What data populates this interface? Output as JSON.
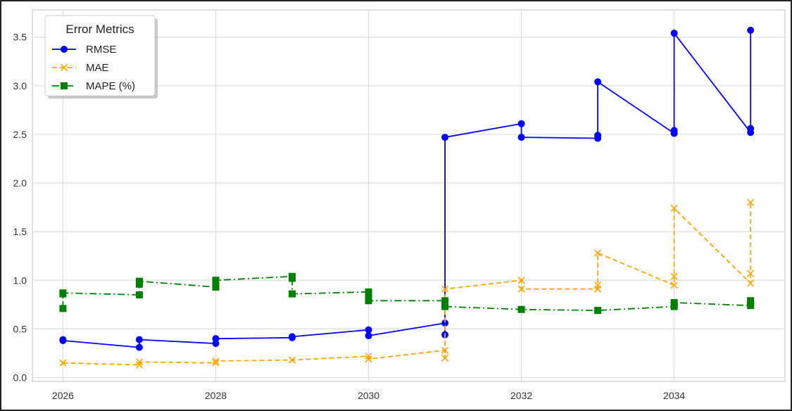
{
  "chart_data": {
    "type": "line",
    "title": "",
    "xlabel": "",
    "ylabel": "",
    "xlim": [
      2025.6,
      2035.45
    ],
    "ylim": [
      -0.04,
      3.78
    ],
    "xticks": [
      "2026",
      "2028",
      "2030",
      "2032",
      "2034"
    ],
    "yticks": [
      "0.0",
      "0.5",
      "1.0",
      "1.5",
      "2.0",
      "2.5",
      "3.0",
      "3.5"
    ],
    "grid": true,
    "legend": {
      "title": "Error Metrics",
      "placement": "top-left",
      "entries": [
        "RMSE",
        "MAE",
        "MAPE (%)"
      ]
    },
    "series": [
      {
        "name": "RMSE",
        "color": "#0000ff",
        "linestyle": "solid",
        "marker": "circle",
        "points": [
          [
            2026,
            0.39
          ],
          [
            2026,
            0.38
          ],
          [
            2027,
            0.31
          ],
          [
            2027,
            0.39
          ],
          [
            2028,
            0.35
          ],
          [
            2028,
            0.4
          ],
          [
            2029,
            0.41
          ],
          [
            2029,
            0.42
          ],
          [
            2030,
            0.49
          ],
          [
            2030,
            0.43
          ],
          [
            2031,
            0.56
          ],
          [
            2031,
            0.44
          ],
          [
            2031,
            2.47
          ],
          [
            2032,
            2.61
          ],
          [
            2032,
            2.47
          ],
          [
            2033,
            2.46
          ],
          [
            2033,
            2.49
          ],
          [
            2033,
            3.04
          ],
          [
            2034,
            2.51
          ],
          [
            2034,
            2.54
          ],
          [
            2034,
            3.54
          ],
          [
            2035,
            2.52
          ],
          [
            2035,
            2.56
          ],
          [
            2035,
            3.57
          ]
        ]
      },
      {
        "name": "MAE",
        "color": "#ffa500",
        "linestyle": "dashed",
        "marker": "x",
        "points": [
          [
            2026,
            0.15
          ],
          [
            2026,
            0.15
          ],
          [
            2027,
            0.13
          ],
          [
            2027,
            0.16
          ],
          [
            2028,
            0.15
          ],
          [
            2028,
            0.17
          ],
          [
            2029,
            0.18
          ],
          [
            2029,
            0.18
          ],
          [
            2030,
            0.22
          ],
          [
            2030,
            0.19
          ],
          [
            2031,
            0.28
          ],
          [
            2031,
            0.2
          ],
          [
            2031,
            0.91
          ],
          [
            2032,
            1.0
          ],
          [
            2032,
            0.91
          ],
          [
            2033,
            0.91
          ],
          [
            2033,
            0.95
          ],
          [
            2033,
            1.28
          ],
          [
            2034,
            0.95
          ],
          [
            2034,
            1.04
          ],
          [
            2034,
            1.74
          ],
          [
            2035,
            0.97
          ],
          [
            2035,
            1.07
          ],
          [
            2035,
            1.8
          ]
        ]
      },
      {
        "name": "MAPE (%)",
        "color": "#008000",
        "linestyle": "dashdot",
        "marker": "square",
        "points": [
          [
            2026,
            0.71
          ],
          [
            2026,
            0.86
          ],
          [
            2026,
            0.87
          ],
          [
            2027,
            0.85
          ],
          [
            2027,
            0.96
          ],
          [
            2027,
            0.99
          ],
          [
            2028,
            0.93
          ],
          [
            2028,
            0.98
          ],
          [
            2028,
            1.0
          ],
          [
            2029,
            1.04
          ],
          [
            2029,
            1.02
          ],
          [
            2029,
            0.86
          ],
          [
            2030,
            0.88
          ],
          [
            2030,
            0.81
          ],
          [
            2030,
            0.79
          ],
          [
            2031,
            0.79
          ],
          [
            2031,
            0.75
          ],
          [
            2031,
            0.73
          ],
          [
            2032,
            0.7
          ],
          [
            2033,
            0.69
          ],
          [
            2034,
            0.73
          ],
          [
            2034,
            0.74
          ],
          [
            2034,
            0.77
          ],
          [
            2035,
            0.74
          ],
          [
            2035,
            0.76
          ],
          [
            2035,
            0.79
          ]
        ]
      }
    ]
  }
}
